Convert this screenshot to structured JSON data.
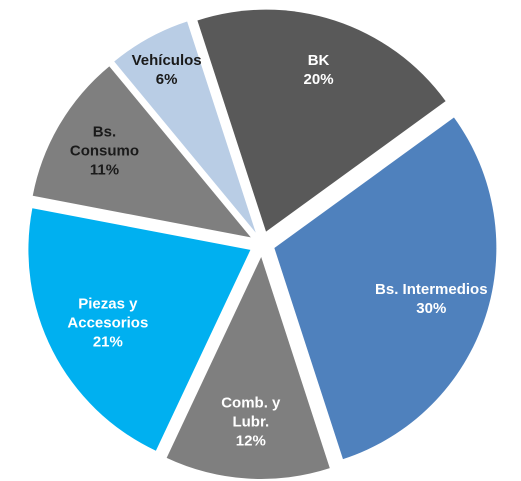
{
  "chart_data": {
    "type": "pie",
    "categories": [
      "BK",
      "Bs. Intermedios",
      "Comb. y Lubr.",
      "Piezas y Accesorios",
      "Bs. Consumo",
      "Vehículos"
    ],
    "values": [
      20,
      30,
      12,
      21,
      11,
      6
    ],
    "value_labels": [
      "20%",
      "30%",
      "12%",
      "21%",
      "11%",
      "6%"
    ],
    "colors": [
      "#595959",
      "#4f81bd",
      "#7f7f7f",
      "#00b0f0",
      "#7f7f7f",
      "#b9cde5"
    ],
    "label_colors": [
      "#ffffff",
      "#ffffff",
      "#ffffff",
      "#ffffff",
      "#1a1a1a",
      "#1a1a1a"
    ]
  }
}
